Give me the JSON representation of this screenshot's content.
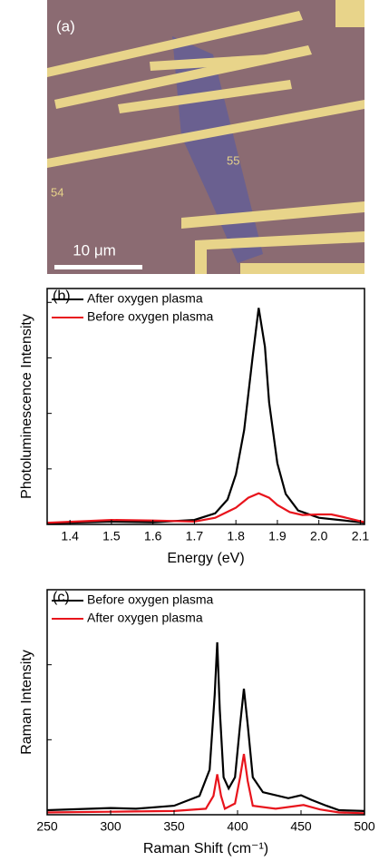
{
  "image_panel": {
    "label": "(a)",
    "marker_55": "55",
    "marker_54": "54",
    "scale_bar": "10 μm"
  },
  "chart_data": [
    {
      "type": "line",
      "label": "(b)",
      "xlabel": "Energy (eV)",
      "ylabel": "Photoluminescence Intensity",
      "xlim": [
        1.345,
        2.11
      ],
      "xticks": [
        1.4,
        1.5,
        1.6,
        1.7,
        1.8,
        1.9,
        {
          "value": 2,
          "label": "2.0"
        },
        2.1
      ],
      "ylim": [
        0,
        4.25
      ],
      "yticks": [
        0,
        1,
        2,
        3,
        4
      ],
      "ytick_labels": false,
      "series": [
        {
          "name": "After oxygen plasma",
          "color": "#000000",
          "x": [
            1.345,
            1.5,
            1.6,
            1.7,
            1.75,
            1.78,
            1.8,
            1.82,
            1.84,
            1.855,
            1.87,
            1.88,
            1.9,
            1.92,
            1.95,
            2.0,
            2.05,
            2.11
          ],
          "values": [
            0.02,
            0.05,
            0.04,
            0.08,
            0.2,
            0.45,
            0.9,
            1.7,
            3.0,
            3.9,
            3.2,
            2.2,
            1.1,
            0.55,
            0.25,
            0.12,
            0.08,
            0.03
          ]
        },
        {
          "name": "Before oxygen plasma",
          "color": "#e8141c",
          "x": [
            1.345,
            1.5,
            1.6,
            1.7,
            1.75,
            1.8,
            1.83,
            1.855,
            1.88,
            1.9,
            1.93,
            1.96,
            2.0,
            2.03,
            2.06,
            2.11
          ],
          "values": [
            0.03,
            0.08,
            0.07,
            0.05,
            0.12,
            0.3,
            0.48,
            0.56,
            0.48,
            0.35,
            0.22,
            0.17,
            0.18,
            0.18,
            0.13,
            0.04
          ]
        }
      ]
    },
    {
      "type": "line",
      "label": "(c)",
      "xlabel": "Raman Shift (cm⁻¹)",
      "ylabel": "Raman Intensity",
      "xlim": [
        250,
        500
      ],
      "xticks": [
        250,
        300,
        350,
        400,
        450,
        500
      ],
      "ylim": [
        0,
        3
      ],
      "yticks": [
        0,
        1,
        2,
        3
      ],
      "ytick_labels": false,
      "series": [
        {
          "name": "Before oxygen plasma",
          "color": "#000000",
          "x": [
            250,
            300,
            320,
            350,
            370,
            378,
            382,
            384,
            386,
            389,
            393,
            398,
            402,
            405,
            408,
            412,
            420,
            440,
            450,
            458,
            470,
            480,
            500
          ],
          "values": [
            0.06,
            0.09,
            0.08,
            0.12,
            0.25,
            0.6,
            1.6,
            2.3,
            1.4,
            0.5,
            0.35,
            0.5,
            1.2,
            1.68,
            1.2,
            0.5,
            0.3,
            0.22,
            0.26,
            0.2,
            0.12,
            0.06,
            0.05
          ]
        },
        {
          "name": "After oxygen plasma",
          "color": "#e8141c",
          "x": [
            250,
            300,
            350,
            375,
            381,
            384,
            387,
            390,
            398,
            402,
            405,
            408,
            412,
            430,
            452,
            465,
            480,
            500
          ],
          "values": [
            0.03,
            0.04,
            0.05,
            0.08,
            0.25,
            0.54,
            0.25,
            0.08,
            0.15,
            0.5,
            0.81,
            0.45,
            0.12,
            0.08,
            0.13,
            0.07,
            0.03,
            0.02
          ]
        }
      ]
    }
  ]
}
